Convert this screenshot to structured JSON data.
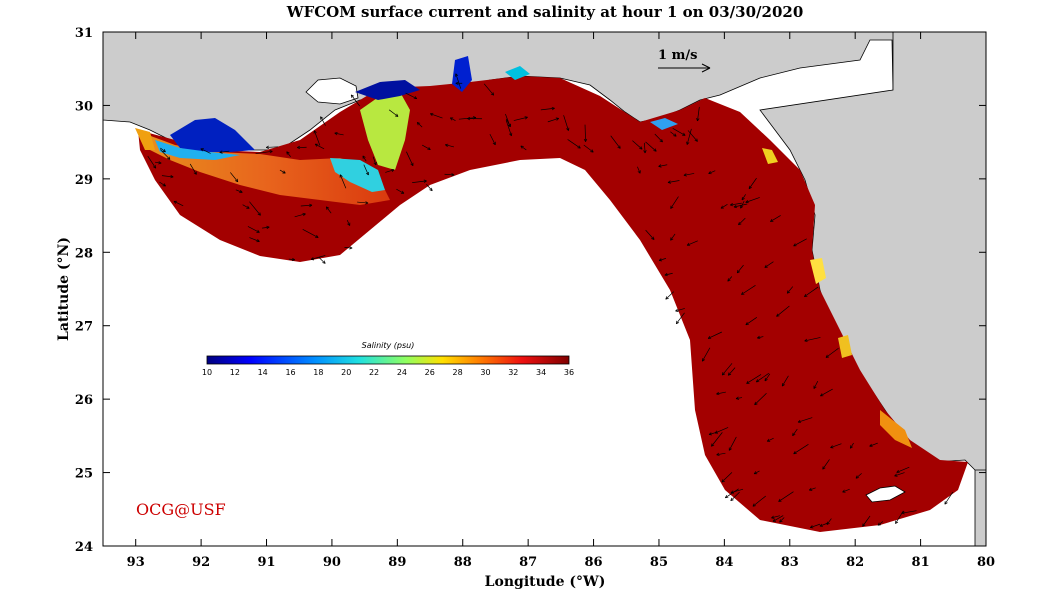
{
  "title": "WFCOM surface current and salinity at hour 1 on 03/30/2020",
  "xlabel": "Longitude (°W)",
  "ylabel": "Latitude (°N)",
  "x_ticks": [
    "93",
    "92",
    "91",
    "90",
    "89",
    "88",
    "87",
    "86",
    "85",
    "84",
    "83",
    "82",
    "81",
    "80"
  ],
  "y_ticks": [
    "31",
    "30",
    "29",
    "28",
    "27",
    "26",
    "25",
    "24"
  ],
  "lon_range": [
    -93.5,
    -80
  ],
  "lat_range": [
    24,
    31
  ],
  "scale_label": "1 m/s",
  "credit": "OCG@USF",
  "colorbar": {
    "title": "Salinity (psu)",
    "ticks": [
      "10",
      "12",
      "14",
      "16",
      "18",
      "20",
      "22",
      "24",
      "26",
      "28",
      "30",
      "32",
      "34",
      "36"
    ],
    "range": [
      10,
      36
    ]
  },
  "colors": {
    "land": "#cccccc",
    "coast": "#000000",
    "ocean_bg": "#ffffff",
    "high_salinity": "#7f0000",
    "credit": "#cc0000"
  },
  "chart_data": {
    "type": "heatmap",
    "variable": "Salinity (psu)",
    "vector_field": "surface current",
    "x_range": [
      -93.5,
      -80
    ],
    "y_range": [
      24,
      31
    ]
  }
}
